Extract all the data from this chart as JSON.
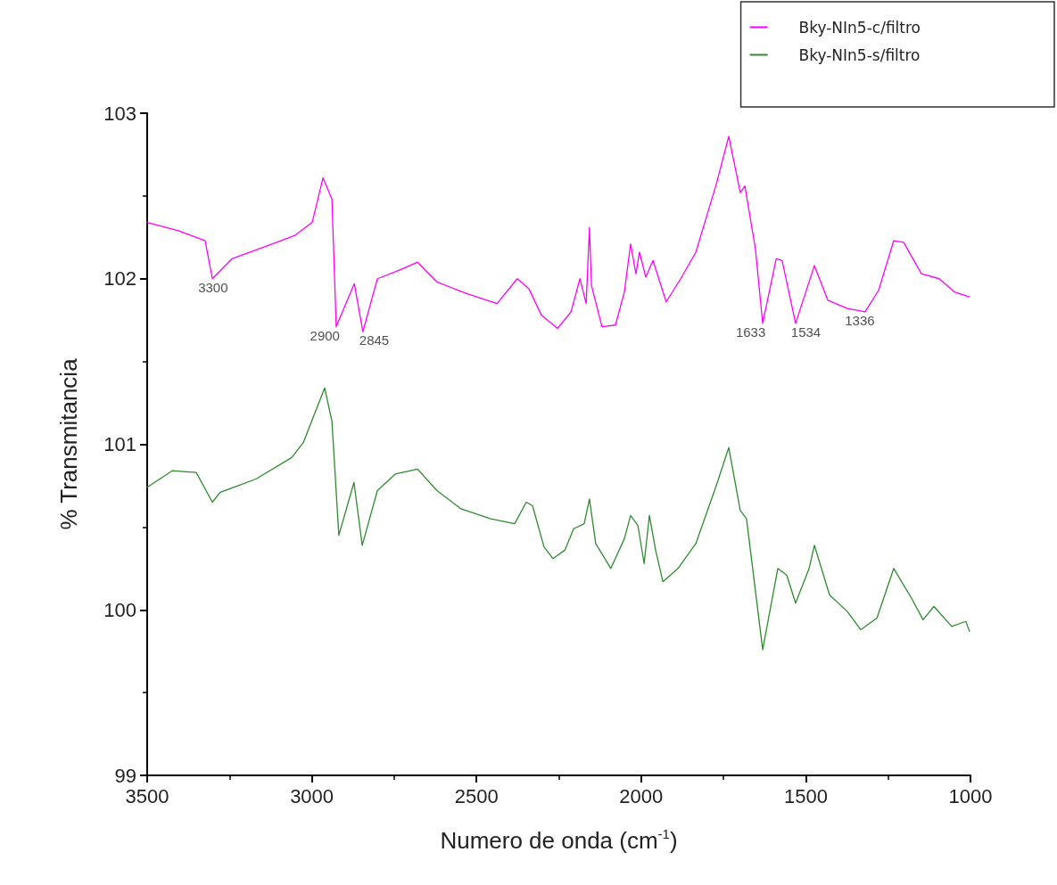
{
  "chart_data": {
    "type": "line",
    "xlabel": "Numero de onda (cm$^{-1}$)",
    "ylabel": "% Transmitancia",
    "xlim": [
      3500,
      1000
    ],
    "xticks": [
      3500,
      3000,
      2500,
      2000,
      1500,
      1000
    ],
    "ylim": [
      99,
      103
    ],
    "yticks": [
      99,
      100,
      101,
      102,
      103
    ],
    "grid": false,
    "legend": "top right",
    "marker": "none",
    "line_style": "solid",
    "series": [
      {
        "name": "Bky-NIn5-c/filtro",
        "color": "#ff00ff",
        "x": [
          3500,
          3405,
          3324,
          3302,
          3243,
          3134,
          3053,
          2999,
          2966,
          2939,
          2926,
          2871,
          2845,
          2801,
          2736,
          2679,
          2620,
          2530,
          2438,
          2376,
          2341,
          2303,
          2254,
          2213,
          2186,
          2167,
          2157,
          2151,
          2119,
          2078,
          2051,
          2032,
          2016,
          2005,
          1986,
          1964,
          1924,
          1880,
          1834,
          1772,
          1734,
          1699,
          1685,
          1653,
          1631,
          1590,
          1572,
          1531,
          1474,
          1433,
          1374,
          1320,
          1279,
          1233,
          1203,
          1149,
          1095,
          1049,
          1003
        ],
        "values": [
          102.34,
          102.29,
          102.23,
          102.0,
          102.12,
          102.2,
          102.26,
          102.34,
          102.61,
          102.48,
          101.71,
          101.97,
          101.68,
          102.0,
          102.05,
          102.1,
          101.98,
          101.91,
          101.85,
          102.0,
          101.94,
          101.78,
          101.7,
          101.8,
          102.0,
          101.85,
          102.31,
          101.96,
          101.71,
          101.72,
          101.92,
          102.21,
          102.03,
          102.16,
          102.01,
          102.11,
          101.86,
          102.0,
          102.16,
          102.57,
          102.86,
          102.52,
          102.56,
          102.18,
          101.73,
          102.12,
          102.11,
          101.73,
          102.08,
          101.87,
          101.82,
          101.8,
          101.93,
          102.23,
          102.22,
          102.03,
          102.0,
          101.92,
          101.89
        ]
      },
      {
        "name": "Bky-NIn5-s/filtro",
        "color": "#2e8b2e",
        "x": [
          3500,
          3424,
          3351,
          3302,
          3278,
          3170,
          3061,
          3026,
          2961,
          2939,
          2918,
          2872,
          2847,
          2801,
          2747,
          2679,
          2620,
          2547,
          2457,
          2384,
          2349,
          2330,
          2295,
          2268,
          2232,
          2205,
          2173,
          2157,
          2138,
          2092,
          2051,
          2032,
          2010,
          1991,
          1975,
          1956,
          1934,
          1888,
          1834,
          1772,
          1734,
          1699,
          1680,
          1631,
          1585,
          1558,
          1531,
          1490,
          1474,
          1428,
          1374,
          1333,
          1284,
          1233,
          1179,
          1144,
          1111,
          1057,
          1014,
          1003
        ],
        "values": [
          100.74,
          100.84,
          100.83,
          100.65,
          100.71,
          100.79,
          100.92,
          101.01,
          101.34,
          101.14,
          100.45,
          100.77,
          100.39,
          100.72,
          100.82,
          100.85,
          100.72,
          100.61,
          100.55,
          100.52,
          100.65,
          100.63,
          100.38,
          100.31,
          100.36,
          100.49,
          100.52,
          100.67,
          100.4,
          100.25,
          100.43,
          100.57,
          100.51,
          100.28,
          100.57,
          100.36,
          100.17,
          100.25,
          100.4,
          100.75,
          100.98,
          100.6,
          100.55,
          99.76,
          100.25,
          100.21,
          100.04,
          100.25,
          100.39,
          100.09,
          99.99,
          99.88,
          99.95,
          100.25,
          100.07,
          99.94,
          100.02,
          99.9,
          99.93,
          99.87
        ]
      }
    ],
    "annotations": [
      {
        "text": "3300",
        "x": 3300,
        "y": 102.0
      },
      {
        "text": "2900",
        "x": 2926,
        "y": 101.71
      },
      {
        "text": "2845",
        "x": 2845,
        "y": 101.68
      },
      {
        "text": "1633",
        "x": 1633,
        "y": 101.73
      },
      {
        "text": "1534",
        "x": 1534,
        "y": 101.73
      },
      {
        "text": "1336",
        "x": 1336,
        "y": 101.8
      }
    ]
  }
}
